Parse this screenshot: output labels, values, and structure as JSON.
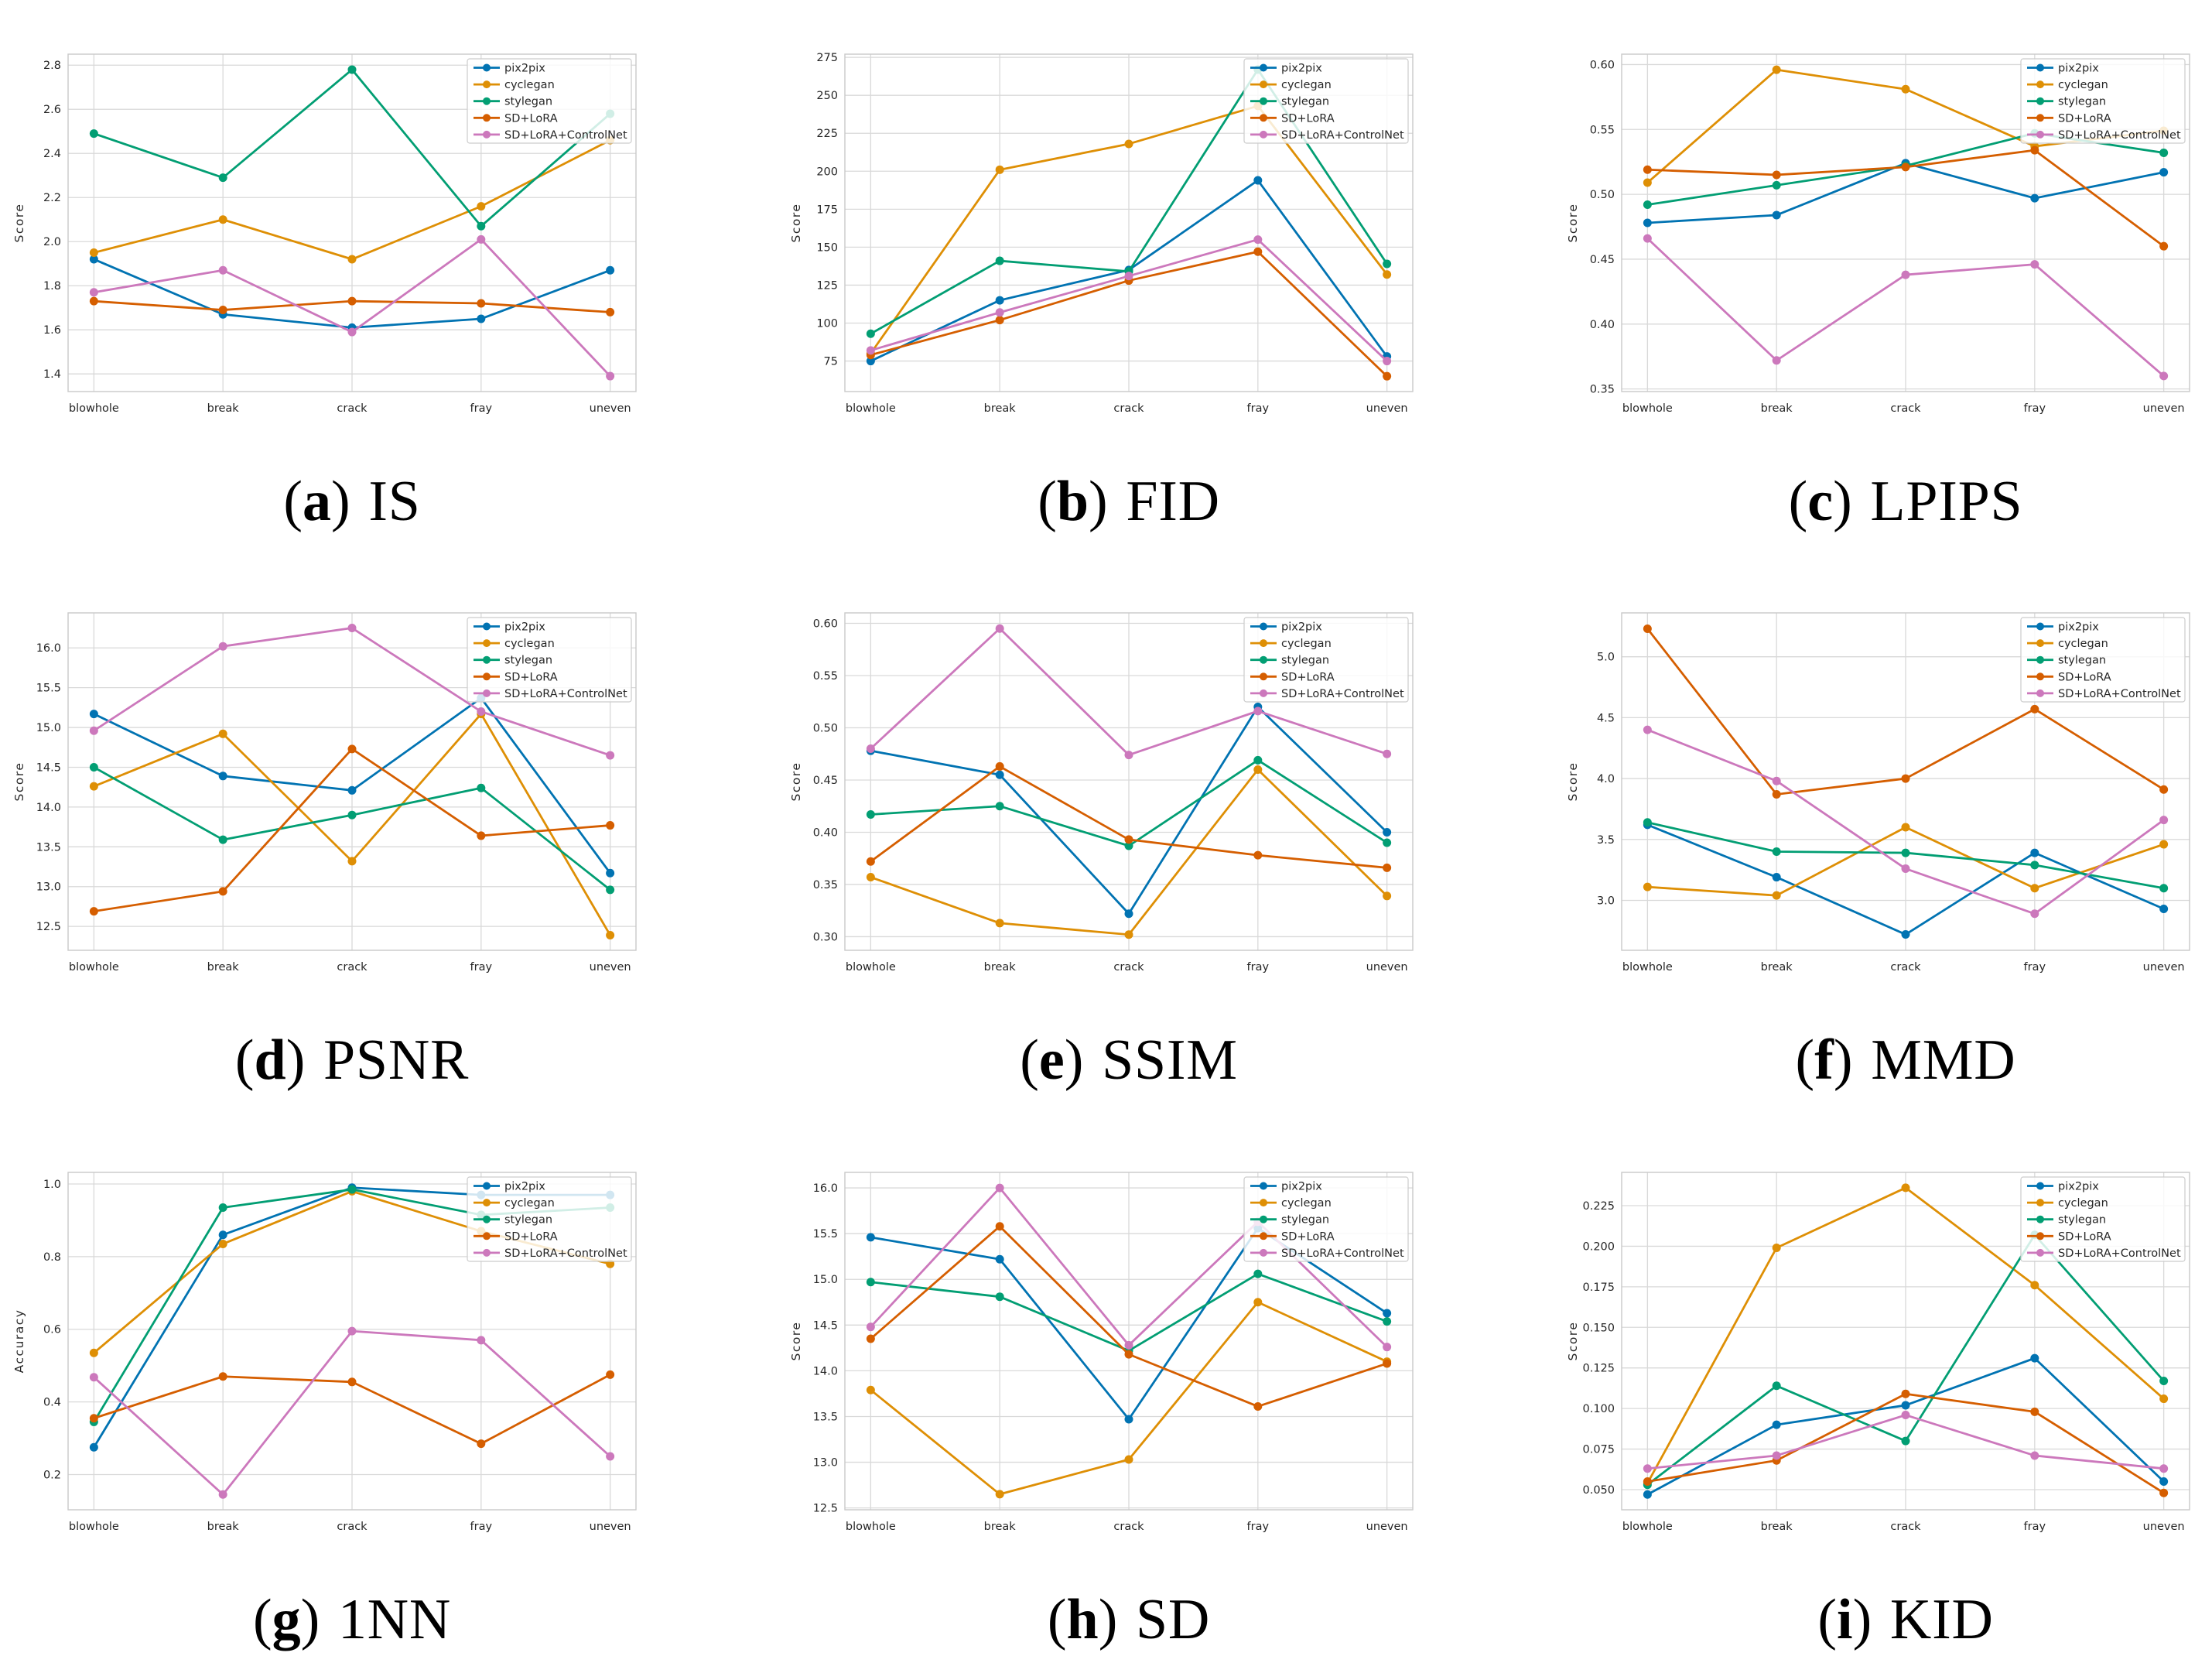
{
  "figure": {
    "background": "#ffffff"
  },
  "categories": [
    "blowhole",
    "break",
    "crack",
    "fray",
    "uneven"
  ],
  "legend": {
    "position": "upper-right",
    "items": [
      "pix2pix",
      "cyclegan",
      "stylegan",
      "SD+LoRA",
      "SD+LoRA+ControlNet"
    ]
  },
  "palette": {
    "pix2pix": "#0173B2",
    "cyclegan": "#DE8F05",
    "stylegan": "#029E73",
    "SD+LoRA": "#D55E00",
    "SD+LoRA+ControlNet": "#CC78BC"
  },
  "style": {
    "grid_color": "#d9d9d9",
    "spine_color": "#c9c9c9",
    "text_color": "#262626",
    "grid_on": true
  },
  "chart_data": [
    {
      "type": "line",
      "caption_letter": "a",
      "caption_label": "IS",
      "xlabel": "",
      "ylabel": "Score",
      "ylim": [
        1.32,
        2.85
      ],
      "yticks": [
        1.4,
        1.6,
        1.8,
        2.0,
        2.2,
        2.4,
        2.6,
        2.8
      ],
      "ytick_labels": [
        "1.4",
        "1.6",
        "1.8",
        "2.0",
        "2.2",
        "2.4",
        "2.6",
        "2.8"
      ],
      "series": [
        {
          "name": "pix2pix",
          "values": [
            1.92,
            1.67,
            1.61,
            1.65,
            1.87
          ]
        },
        {
          "name": "cyclegan",
          "values": [
            1.95,
            2.1,
            1.92,
            2.16,
            2.46
          ]
        },
        {
          "name": "stylegan",
          "values": [
            2.49,
            2.29,
            2.78,
            2.07,
            2.58
          ]
        },
        {
          "name": "SD+LoRA",
          "values": [
            1.73,
            1.69,
            1.73,
            1.72,
            1.68
          ]
        },
        {
          "name": "SD+LoRA+ControlNet",
          "values": [
            1.77,
            1.87,
            1.59,
            2.01,
            1.39
          ]
        }
      ]
    },
    {
      "type": "line",
      "caption_letter": "b",
      "caption_label": "FID",
      "xlabel": "",
      "ylabel": "Score",
      "ylim": [
        54.9,
        277.1
      ],
      "yticks": [
        75,
        100,
        125,
        150,
        175,
        200,
        225,
        250,
        275
      ],
      "ytick_labels": [
        "75",
        "100",
        "125",
        "150",
        "175",
        "200",
        "225",
        "250",
        "275"
      ],
      "series": [
        {
          "name": "pix2pix",
          "values": [
            75,
            115,
            135,
            194,
            78
          ]
        },
        {
          "name": "cyclegan",
          "values": [
            80,
            201,
            218,
            243,
            132
          ]
        },
        {
          "name": "stylegan",
          "values": [
            93,
            141,
            134,
            267,
            139
          ]
        },
        {
          "name": "SD+LoRA",
          "values": [
            79,
            102,
            128,
            147,
            65
          ]
        },
        {
          "name": "SD+LoRA+ControlNet",
          "values": [
            82,
            107,
            131,
            155,
            75
          ]
        }
      ]
    },
    {
      "type": "line",
      "caption_letter": "c",
      "caption_label": "LPIPS",
      "xlabel": "",
      "ylabel": "Score",
      "ylim": [
        0.348,
        0.608
      ],
      "yticks": [
        0.35,
        0.4,
        0.45,
        0.5,
        0.55,
        0.6
      ],
      "ytick_labels": [
        "0.35",
        "0.40",
        "0.45",
        "0.50",
        "0.55",
        "0.60"
      ],
      "series": [
        {
          "name": "pix2pix",
          "values": [
            0.478,
            0.484,
            0.524,
            0.497,
            0.517
          ]
        },
        {
          "name": "cyclegan",
          "values": [
            0.509,
            0.596,
            0.581,
            0.537,
            0.549
          ]
        },
        {
          "name": "stylegan",
          "values": [
            0.492,
            0.507,
            0.522,
            0.547,
            0.532
          ]
        },
        {
          "name": "SD+LoRA",
          "values": [
            0.519,
            0.515,
            0.521,
            0.534,
            0.46
          ]
        },
        {
          "name": "SD+LoRA+ControlNet",
          "values": [
            0.466,
            0.372,
            0.438,
            0.446,
            0.36
          ]
        }
      ]
    },
    {
      "type": "line",
      "caption_letter": "d",
      "caption_label": "PSNR",
      "xlabel": "",
      "ylabel": "Score",
      "ylim": [
        12.2,
        16.44
      ],
      "yticks": [
        12.5,
        13.0,
        13.5,
        14.0,
        14.5,
        15.0,
        15.5,
        16.0
      ],
      "ytick_labels": [
        "12.5",
        "13.0",
        "13.5",
        "14.0",
        "14.5",
        "15.0",
        "15.5",
        "16.0"
      ],
      "series": [
        {
          "name": "pix2pix",
          "values": [
            15.17,
            14.39,
            14.21,
            15.37,
            13.17
          ]
        },
        {
          "name": "cyclegan",
          "values": [
            14.26,
            14.92,
            13.32,
            15.17,
            12.39
          ]
        },
        {
          "name": "stylegan",
          "values": [
            14.5,
            13.59,
            13.9,
            14.24,
            12.96
          ]
        },
        {
          "name": "SD+LoRA",
          "values": [
            12.69,
            12.94,
            14.73,
            13.64,
            13.77
          ]
        },
        {
          "name": "SD+LoRA+ControlNet",
          "values": [
            14.96,
            16.02,
            16.25,
            15.2,
            14.65
          ]
        }
      ]
    },
    {
      "type": "line",
      "caption_letter": "e",
      "caption_label": "SSIM",
      "xlabel": "",
      "ylabel": "Score",
      "ylim": [
        0.287,
        0.61
      ],
      "yticks": [
        0.3,
        0.35,
        0.4,
        0.45,
        0.5,
        0.55,
        0.6
      ],
      "ytick_labels": [
        "0.30",
        "0.35",
        "0.40",
        "0.45",
        "0.50",
        "0.55",
        "0.60"
      ],
      "series": [
        {
          "name": "pix2pix",
          "values": [
            0.478,
            0.455,
            0.322,
            0.52,
            0.4
          ]
        },
        {
          "name": "cyclegan",
          "values": [
            0.357,
            0.313,
            0.302,
            0.46,
            0.339
          ]
        },
        {
          "name": "stylegan",
          "values": [
            0.417,
            0.425,
            0.387,
            0.469,
            0.39
          ]
        },
        {
          "name": "SD+LoRA",
          "values": [
            0.372,
            0.463,
            0.393,
            0.378,
            0.366
          ]
        },
        {
          "name": "SD+LoRA+ControlNet",
          "values": [
            0.48,
            0.595,
            0.474,
            0.516,
            0.475
          ]
        }
      ]
    },
    {
      "type": "line",
      "caption_letter": "f",
      "caption_label": "MMD",
      "xlabel": "",
      "ylabel": "Score",
      "ylim": [
        2.59,
        5.36
      ],
      "yticks": [
        3.0,
        3.5,
        4.0,
        4.5,
        5.0
      ],
      "ytick_labels": [
        "3.0",
        "3.5",
        "4.0",
        "4.5",
        "5.0"
      ],
      "series": [
        {
          "name": "pix2pix",
          "values": [
            3.62,
            3.19,
            2.72,
            3.39,
            2.93
          ]
        },
        {
          "name": "cyclegan",
          "values": [
            3.11,
            3.04,
            3.6,
            3.1,
            3.46
          ]
        },
        {
          "name": "stylegan",
          "values": [
            3.64,
            3.4,
            3.39,
            3.29,
            3.1
          ]
        },
        {
          "name": "SD+LoRA",
          "values": [
            5.23,
            3.87,
            4.0,
            4.57,
            3.91
          ]
        },
        {
          "name": "SD+LoRA+ControlNet",
          "values": [
            4.4,
            3.98,
            3.26,
            2.89,
            3.66
          ]
        }
      ]
    },
    {
      "type": "line",
      "caption_letter": "g",
      "caption_label": "1NN",
      "xlabel": "",
      "ylabel": "Accuracy",
      "ylim": [
        0.103,
        1.032
      ],
      "yticks": [
        0.2,
        0.4,
        0.6,
        0.8,
        1.0
      ],
      "ytick_labels": [
        "0.2",
        "0.4",
        "0.6",
        "0.8",
        "1.0"
      ],
      "series": [
        {
          "name": "pix2pix",
          "values": [
            0.275,
            0.86,
            0.99,
            0.97,
            0.97
          ]
        },
        {
          "name": "cyclegan",
          "values": [
            0.535,
            0.835,
            0.98,
            0.87,
            0.78
          ]
        },
        {
          "name": "stylegan",
          "values": [
            0.345,
            0.935,
            0.985,
            0.915,
            0.935
          ]
        },
        {
          "name": "SD+LoRA",
          "values": [
            0.355,
            0.47,
            0.455,
            0.285,
            0.475
          ]
        },
        {
          "name": "SD+LoRA+ControlNet",
          "values": [
            0.468,
            0.145,
            0.595,
            0.57,
            0.25
          ]
        }
      ]
    },
    {
      "type": "line",
      "caption_letter": "h",
      "caption_label": "SD",
      "xlabel": "",
      "ylabel": "Score",
      "ylim": [
        12.48,
        16.17
      ],
      "yticks": [
        12.5,
        13.0,
        13.5,
        14.0,
        14.5,
        15.0,
        15.5,
        16.0
      ],
      "ytick_labels": [
        "12.5",
        "13.0",
        "13.5",
        "14.0",
        "14.5",
        "15.0",
        "15.5",
        "16.0"
      ],
      "series": [
        {
          "name": "pix2pix",
          "values": [
            15.46,
            15.22,
            13.47,
            15.56,
            14.63
          ]
        },
        {
          "name": "cyclegan",
          "values": [
            13.79,
            12.65,
            13.03,
            14.75,
            14.1
          ]
        },
        {
          "name": "stylegan",
          "values": [
            14.97,
            14.81,
            14.22,
            15.06,
            14.54
          ]
        },
        {
          "name": "SD+LoRA",
          "values": [
            14.35,
            15.58,
            14.18,
            13.61,
            14.08
          ]
        },
        {
          "name": "SD+LoRA+ControlNet",
          "values": [
            14.48,
            16.0,
            14.28,
            15.63,
            14.26
          ]
        }
      ]
    },
    {
      "type": "line",
      "caption_letter": "i",
      "caption_label": "KID",
      "xlabel": "",
      "ylabel": "Score",
      "ylim": [
        0.0376,
        0.2455
      ],
      "yticks": [
        0.05,
        0.075,
        0.1,
        0.125,
        0.15,
        0.175,
        0.2,
        0.225
      ],
      "ytick_labels": [
        "0.050",
        "0.075",
        "0.100",
        "0.125",
        "0.150",
        "0.175",
        "0.200",
        "0.225"
      ],
      "series": [
        {
          "name": "pix2pix",
          "values": [
            0.047,
            0.09,
            0.102,
            0.131,
            0.055
          ]
        },
        {
          "name": "cyclegan",
          "values": [
            0.054,
            0.199,
            0.236,
            0.176,
            0.106
          ]
        },
        {
          "name": "stylegan",
          "values": [
            0.053,
            0.114,
            0.08,
            0.207,
            0.117
          ]
        },
        {
          "name": "SD+LoRA",
          "values": [
            0.055,
            0.068,
            0.109,
            0.098,
            0.048
          ]
        },
        {
          "name": "SD+LoRA+ControlNet",
          "values": [
            0.063,
            0.071,
            0.096,
            0.071,
            0.063
          ]
        }
      ]
    }
  ]
}
